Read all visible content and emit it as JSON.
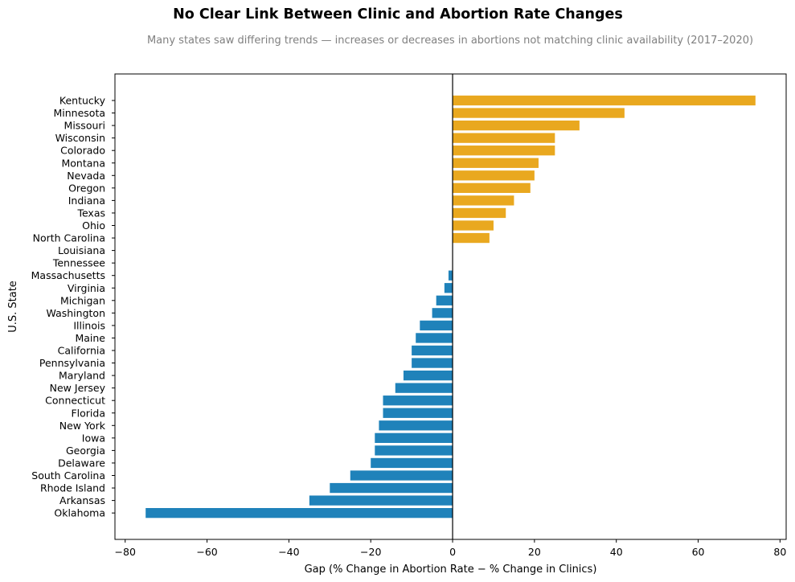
{
  "chart_data": {
    "type": "bar",
    "orientation": "horizontal",
    "title": "No Clear Link Between Clinic and Abortion Rate Changes",
    "subtitle": "Many states saw differing trends — increases or decreases in abortions not matching clinic availability (2017–2020)",
    "xlabel": "Gap (% Change in Abortion Rate − % Change in Clinics)",
    "ylabel": "U.S. State",
    "xlim": [
      -82.5,
      81.5
    ],
    "xticks": [
      -80,
      -60,
      -40,
      -20,
      0,
      20,
      40,
      60,
      80
    ],
    "xtick_labels": [
      "−80",
      "−60",
      "−40",
      "−20",
      "0",
      "20",
      "40",
      "60",
      "80"
    ],
    "grid": false,
    "colors": {
      "positive": "#E9A81F",
      "negative": "#1F82BA",
      "zero_line": "#000000"
    },
    "categories": [
      "Kentucky",
      "Minnesota",
      "Missouri",
      "Wisconsin",
      "Colorado",
      "Montana",
      "Nevada",
      "Oregon",
      "Indiana",
      "Texas",
      "Ohio",
      "North Carolina",
      "Louisiana",
      "Tennessee",
      "Massachusetts",
      "Virginia",
      "Michigan",
      "Washington",
      "Illinois",
      "Maine",
      "California",
      "Pennsylvania",
      "Maryland",
      "New Jersey",
      "Connecticut",
      "Florida",
      "New York",
      "Iowa",
      "Georgia",
      "Delaware",
      "South Carolina",
      "Rhode Island",
      "Arkansas",
      "Oklahoma"
    ],
    "values": [
      74,
      42,
      31,
      25,
      25,
      21,
      20,
      19,
      15,
      13,
      10,
      9,
      0,
      0,
      -1,
      -2,
      -4,
      -5,
      -8,
      -9,
      -10,
      -10,
      -12,
      -14,
      -17,
      -17,
      -18,
      -19,
      -19,
      -20,
      -25,
      -30,
      -35,
      -75
    ]
  }
}
